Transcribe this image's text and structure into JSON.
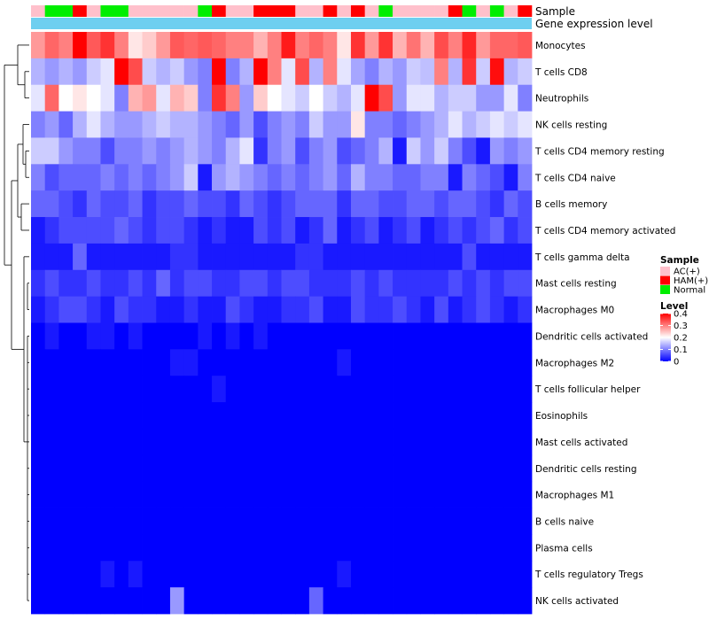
{
  "chart_data": {
    "type": "heatmap",
    "title": "",
    "annotation_labels": [
      "Sample",
      "Gene expression level"
    ],
    "gene_expression_color": "#6ecff0",
    "sample_groups": [
      {
        "name": "AC(+)",
        "color": "#ffc0cb"
      },
      {
        "name": "HAM(+)",
        "color": "#ff0000"
      },
      {
        "name": "Normal",
        "color": "#00ee00"
      }
    ],
    "samples": [
      "AC(+)",
      "Normal",
      "Normal",
      "HAM(+)",
      "AC(+)",
      "Normal",
      "Normal",
      "AC(+)",
      "AC(+)",
      "AC(+)",
      "AC(+)",
      "AC(+)",
      "Normal",
      "HAM(+)",
      "AC(+)",
      "AC(+)",
      "HAM(+)",
      "HAM(+)",
      "HAM(+)",
      "AC(+)",
      "AC(+)",
      "HAM(+)",
      "AC(+)",
      "HAM(+)",
      "AC(+)",
      "Normal",
      "AC(+)",
      "AC(+)",
      "AC(+)",
      "AC(+)",
      "HAM(+)",
      "Normal",
      "AC(+)",
      "Normal",
      "AC(+)",
      "HAM(+)"
    ],
    "rows": [
      "Monocytes",
      "T cells CD8",
      "Neutrophils",
      "NK cells resting",
      "T cells CD4 memory resting",
      "T cells CD4 naive",
      "B cells memory",
      "T cells CD4 memory activated",
      "T cells gamma delta",
      "Mast cells resting",
      "Macrophages M0",
      "Dendritic cells activated",
      "Macrophages M2",
      "T cells follicular helper",
      "Eosinophils",
      "Mast cells activated",
      "Dendritic cells resting",
      "Macrophages M1",
      "B cells naive",
      "Plasma cells",
      "T cells regulatory  Tregs",
      "NK cells activated"
    ],
    "values": [
      [
        0.28,
        0.32,
        0.3,
        0.4,
        0.33,
        0.36,
        0.3,
        0.22,
        0.24,
        0.28,
        0.33,
        0.32,
        0.33,
        0.32,
        0.3,
        0.3,
        0.26,
        0.3,
        0.38,
        0.3,
        0.32,
        0.3,
        0.22,
        0.36,
        0.28,
        0.36,
        0.26,
        0.31,
        0.26,
        0.34,
        0.3,
        0.37,
        0.28,
        0.32,
        0.32,
        0.33
      ],
      [
        0.14,
        0.12,
        0.14,
        0.12,
        0.16,
        0.18,
        0.4,
        0.34,
        0.16,
        0.14,
        0.16,
        0.12,
        0.1,
        0.4,
        0.1,
        0.14,
        0.4,
        0.3,
        0.18,
        0.34,
        0.14,
        0.3,
        0.18,
        0.13,
        0.1,
        0.14,
        0.12,
        0.16,
        0.15,
        0.3,
        0.14,
        0.36,
        0.16,
        0.39,
        0.14,
        0.16
      ],
      [
        0.18,
        0.32,
        0.2,
        0.22,
        0.2,
        0.18,
        0.1,
        0.26,
        0.28,
        0.18,
        0.26,
        0.24,
        0.1,
        0.36,
        0.3,
        0.12,
        0.24,
        0.2,
        0.18,
        0.16,
        0.2,
        0.16,
        0.14,
        0.18,
        0.4,
        0.34,
        0.12,
        0.18,
        0.18,
        0.14,
        0.16,
        0.16,
        0.12,
        0.12,
        0.18,
        0.1
      ],
      [
        0.1,
        0.12,
        0.08,
        0.14,
        0.18,
        0.14,
        0.12,
        0.12,
        0.14,
        0.16,
        0.14,
        0.14,
        0.12,
        0.1,
        0.08,
        0.12,
        0.06,
        0.1,
        0.12,
        0.1,
        0.16,
        0.12,
        0.12,
        0.22,
        0.1,
        0.1,
        0.08,
        0.1,
        0.12,
        0.14,
        0.18,
        0.14,
        0.16,
        0.18,
        0.16,
        0.18
      ],
      [
        0.16,
        0.16,
        0.12,
        0.1,
        0.1,
        0.06,
        0.1,
        0.1,
        0.12,
        0.1,
        0.12,
        0.14,
        0.12,
        0.1,
        0.14,
        0.18,
        0.04,
        0.1,
        0.12,
        0.06,
        0.1,
        0.12,
        0.06,
        0.08,
        0.1,
        0.14,
        0.02,
        0.16,
        0.12,
        0.16,
        0.1,
        0.06,
        0.02,
        0.12,
        0.1,
        0.12
      ],
      [
        0.1,
        0.06,
        0.08,
        0.08,
        0.08,
        0.1,
        0.08,
        0.1,
        0.08,
        0.1,
        0.12,
        0.16,
        0.02,
        0.12,
        0.14,
        0.12,
        0.1,
        0.08,
        0.1,
        0.08,
        0.1,
        0.12,
        0.08,
        0.14,
        0.1,
        0.1,
        0.08,
        0.08,
        0.1,
        0.1,
        0.02,
        0.1,
        0.08,
        0.06,
        0.02,
        0.1
      ],
      [
        0.08,
        0.08,
        0.06,
        0.04,
        0.08,
        0.06,
        0.06,
        0.08,
        0.04,
        0.06,
        0.06,
        0.08,
        0.06,
        0.06,
        0.04,
        0.08,
        0.06,
        0.04,
        0.06,
        0.08,
        0.08,
        0.08,
        0.04,
        0.08,
        0.08,
        0.06,
        0.06,
        0.08,
        0.08,
        0.06,
        0.08,
        0.08,
        0.06,
        0.04,
        0.08,
        0.06
      ],
      [
        0.02,
        0.04,
        0.06,
        0.06,
        0.06,
        0.06,
        0.08,
        0.06,
        0.04,
        0.06,
        0.06,
        0.04,
        0.02,
        0.04,
        0.02,
        0.02,
        0.06,
        0.04,
        0.06,
        0.02,
        0.04,
        0.08,
        0.02,
        0.04,
        0.06,
        0.02,
        0.04,
        0.06,
        0.02,
        0.04,
        0.06,
        0.04,
        0.06,
        0.08,
        0.04,
        0.06
      ],
      [
        0.02,
        0.02,
        0.02,
        0.08,
        0.02,
        0.02,
        0.02,
        0.02,
        0.02,
        0.02,
        0.04,
        0.04,
        0.02,
        0.02,
        0.02,
        0.02,
        0.02,
        0.02,
        0.02,
        0.04,
        0.04,
        0.02,
        0.02,
        0.02,
        0.02,
        0.02,
        0.02,
        0.02,
        0.02,
        0.02,
        0.02,
        0.06,
        0.02,
        0.02,
        0.02,
        0.02
      ],
      [
        0.04,
        0.06,
        0.04,
        0.04,
        0.06,
        0.04,
        0.04,
        0.06,
        0.04,
        0.08,
        0.04,
        0.06,
        0.06,
        0.04,
        0.04,
        0.06,
        0.06,
        0.04,
        0.06,
        0.06,
        0.04,
        0.04,
        0.04,
        0.06,
        0.04,
        0.06,
        0.04,
        0.04,
        0.04,
        0.04,
        0.06,
        0.04,
        0.06,
        0.04,
        0.06,
        0.06
      ],
      [
        0.02,
        0.04,
        0.06,
        0.06,
        0.04,
        0.02,
        0.06,
        0.04,
        0.04,
        0.02,
        0.02,
        0.04,
        0.02,
        0.02,
        0.06,
        0.04,
        0.02,
        0.02,
        0.04,
        0.04,
        0.06,
        0.02,
        0.02,
        0.06,
        0.04,
        0.04,
        0.06,
        0.04,
        0.02,
        0.06,
        0.02,
        0.04,
        0.06,
        0.04,
        0.02,
        0.04
      ],
      [
        0.0,
        0.02,
        0.0,
        0.0,
        0.02,
        0.02,
        0.0,
        0.02,
        0.0,
        0.0,
        0.0,
        0.0,
        0.02,
        0.0,
        0.02,
        0.0,
        0.02,
        0.0,
        0.0,
        0.0,
        0.0,
        0.0,
        0.0,
        0.0,
        0.0,
        0.0,
        0.0,
        0.0,
        0.0,
        0.0,
        0.0,
        0.0,
        0.0,
        0.0,
        0.0,
        0.0
      ],
      [
        0.0,
        0.0,
        0.0,
        0.0,
        0.0,
        0.0,
        0.0,
        0.0,
        0.0,
        0.0,
        0.02,
        0.02,
        0.0,
        0.0,
        0.0,
        0.0,
        0.0,
        0.0,
        0.0,
        0.0,
        0.0,
        0.0,
        0.02,
        0.0,
        0.0,
        0.0,
        0.0,
        0.0,
        0.0,
        0.0,
        0.0,
        0.0,
        0.0,
        0.0,
        0.0,
        0.0
      ],
      [
        0.0,
        0.0,
        0.0,
        0.0,
        0.0,
        0.0,
        0.0,
        0.0,
        0.0,
        0.0,
        0.0,
        0.0,
        0.0,
        0.02,
        0.0,
        0.0,
        0.0,
        0.0,
        0.0,
        0.0,
        0.0,
        0.0,
        0.0,
        0.0,
        0.0,
        0.0,
        0.0,
        0.0,
        0.0,
        0.0,
        0.0,
        0.0,
        0.0,
        0.0,
        0.0,
        0.0
      ],
      [
        0.0,
        0.0,
        0.0,
        0.0,
        0.0,
        0.0,
        0.0,
        0.0,
        0.0,
        0.0,
        0.0,
        0.0,
        0.0,
        0.0,
        0.0,
        0.0,
        0.0,
        0.0,
        0.0,
        0.0,
        0.0,
        0.0,
        0.0,
        0.0,
        0.0,
        0.0,
        0.0,
        0.0,
        0.0,
        0.0,
        0.0,
        0.0,
        0.0,
        0.0,
        0.0,
        0.0
      ],
      [
        0.0,
        0.0,
        0.0,
        0.0,
        0.0,
        0.0,
        0.0,
        0.0,
        0.0,
        0.0,
        0.0,
        0.0,
        0.0,
        0.0,
        0.0,
        0.0,
        0.0,
        0.0,
        0.0,
        0.0,
        0.0,
        0.0,
        0.0,
        0.0,
        0.0,
        0.0,
        0.0,
        0.0,
        0.0,
        0.0,
        0.0,
        0.0,
        0.0,
        0.0,
        0.0,
        0.0
      ],
      [
        0.0,
        0.0,
        0.0,
        0.0,
        0.0,
        0.0,
        0.0,
        0.0,
        0.0,
        0.0,
        0.0,
        0.0,
        0.0,
        0.0,
        0.0,
        0.0,
        0.0,
        0.0,
        0.0,
        0.0,
        0.0,
        0.0,
        0.0,
        0.0,
        0.0,
        0.0,
        0.0,
        0.0,
        0.0,
        0.0,
        0.0,
        0.0,
        0.0,
        0.0,
        0.0,
        0.0
      ],
      [
        0.0,
        0.0,
        0.0,
        0.0,
        0.0,
        0.0,
        0.0,
        0.0,
        0.0,
        0.0,
        0.0,
        0.0,
        0.0,
        0.0,
        0.0,
        0.0,
        0.0,
        0.0,
        0.0,
        0.0,
        0.0,
        0.0,
        0.0,
        0.0,
        0.0,
        0.0,
        0.0,
        0.0,
        0.0,
        0.0,
        0.0,
        0.0,
        0.0,
        0.0,
        0.0,
        0.0
      ],
      [
        0.0,
        0.0,
        0.0,
        0.0,
        0.0,
        0.0,
        0.0,
        0.0,
        0.0,
        0.0,
        0.0,
        0.0,
        0.0,
        0.0,
        0.0,
        0.0,
        0.0,
        0.0,
        0.0,
        0.0,
        0.0,
        0.0,
        0.0,
        0.0,
        0.0,
        0.0,
        0.0,
        0.0,
        0.0,
        0.0,
        0.0,
        0.0,
        0.0,
        0.0,
        0.0,
        0.0
      ],
      [
        0.0,
        0.0,
        0.0,
        0.0,
        0.0,
        0.0,
        0.0,
        0.0,
        0.0,
        0.0,
        0.0,
        0.0,
        0.0,
        0.0,
        0.0,
        0.0,
        0.0,
        0.0,
        0.0,
        0.0,
        0.0,
        0.0,
        0.0,
        0.0,
        0.0,
        0.0,
        0.0,
        0.0,
        0.0,
        0.0,
        0.0,
        0.0,
        0.0,
        0.0,
        0.0,
        0.0
      ],
      [
        0.0,
        0.0,
        0.0,
        0.0,
        0.0,
        0.02,
        0.0,
        0.02,
        0.0,
        0.0,
        0.0,
        0.0,
        0.0,
        0.0,
        0.0,
        0.0,
        0.0,
        0.0,
        0.0,
        0.0,
        0.0,
        0.0,
        0.02,
        0.0,
        0.0,
        0.0,
        0.0,
        0.0,
        0.0,
        0.0,
        0.0,
        0.0,
        0.0,
        0.0,
        0.0,
        0.0
      ],
      [
        0.0,
        0.0,
        0.0,
        0.0,
        0.0,
        0.0,
        0.0,
        0.0,
        0.0,
        0.0,
        0.12,
        0.0,
        0.0,
        0.0,
        0.0,
        0.0,
        0.0,
        0.0,
        0.0,
        0.0,
        0.08,
        0.0,
        0.0,
        0.0,
        0.0,
        0.0,
        0.0,
        0.0,
        0.0,
        0.0,
        0.0,
        0.0,
        0.0,
        0.0,
        0.0,
        0.0
      ]
    ],
    "legend_sample_title": "Sample",
    "legend_level_title": "Level",
    "level_ticks": [
      0.4,
      0.3,
      0.2,
      0.1,
      0
    ],
    "level_tick_labels": [
      "0.4",
      "0.3",
      "0.2",
      "0.1",
      "0"
    ],
    "color_scale": {
      "low": "#0000ff",
      "mid": "#ffffff",
      "high": "#ff0000",
      "min": 0,
      "mid_value": 0.2,
      "max": 0.4
    }
  }
}
